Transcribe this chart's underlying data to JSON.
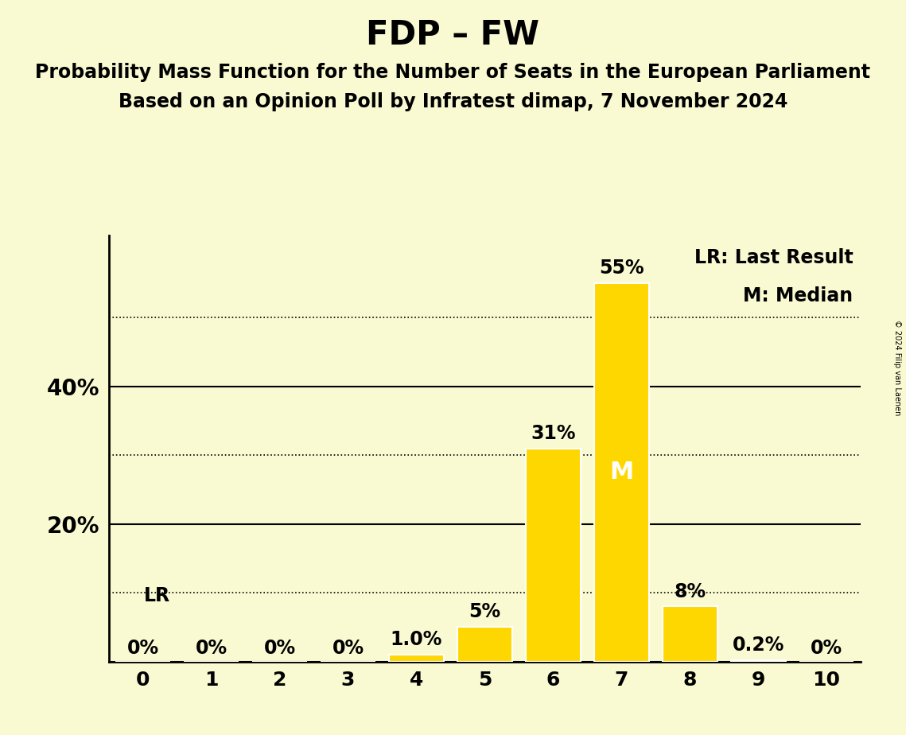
{
  "title": "FDP – FW",
  "subtitle1": "Probability Mass Function for the Number of Seats in the European Parliament",
  "subtitle2": "Based on an Opinion Poll by Infratest dimap, 7 November 2024",
  "copyright": "© 2024 Filip van Laenen",
  "seats": [
    0,
    1,
    2,
    3,
    4,
    5,
    6,
    7,
    8,
    9,
    10
  ],
  "probabilities": [
    0.0,
    0.0,
    0.0,
    0.0,
    1.0,
    5.0,
    31.0,
    55.0,
    8.0,
    0.2,
    0.0
  ],
  "bar_color": "#FFD700",
  "background_color": "#FAFAD2",
  "label_color": "#000000",
  "median_seat": 7,
  "median_label": "M",
  "median_label_color": "#FFFFFF",
  "lr_label": "LR",
  "solid_yticks": [
    0,
    20,
    40
  ],
  "dotted_yticks": [
    10,
    30,
    50
  ],
  "ylim": [
    0,
    62
  ],
  "xlim": [
    -0.5,
    10.5
  ],
  "bar_labels": [
    "0%",
    "0%",
    "0%",
    "0%",
    "1.0%",
    "5%",
    "31%",
    "55%",
    "8%",
    "0.2%",
    "0%"
  ],
  "legend_text1": "LR: Last Result",
  "legend_text2": "M: Median",
  "title_fontsize": 30,
  "subtitle_fontsize": 17,
  "axis_tick_fontsize": 18,
  "bar_label_fontsize": 17,
  "legend_fontsize": 17,
  "lr_label_fontsize": 17,
  "median_fontsize": 22,
  "ytick_label_fontsize": 20
}
